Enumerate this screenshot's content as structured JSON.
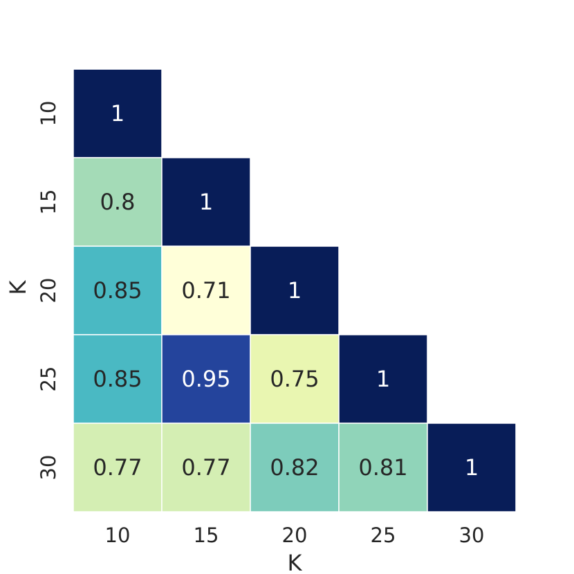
{
  "chart_data": {
    "type": "heatmap",
    "title": "",
    "xlabel": "K",
    "ylabel": "K",
    "x_categories": [
      "10",
      "15",
      "20",
      "25",
      "30"
    ],
    "y_categories": [
      "10",
      "15",
      "20",
      "25",
      "30"
    ],
    "mask": "upper-triangle",
    "colormap": "YlGnBu",
    "colorbar": false,
    "values": [
      [
        1,
        null,
        null,
        null,
        null
      ],
      [
        0.8,
        1,
        null,
        null,
        null
      ],
      [
        0.85,
        0.71,
        1,
        null,
        null
      ],
      [
        0.85,
        0.95,
        0.75,
        1,
        null
      ],
      [
        0.77,
        0.77,
        0.82,
        0.81,
        1
      ]
    ],
    "labels": [
      [
        "1",
        null,
        null,
        null,
        null
      ],
      [
        "0.8",
        "1",
        null,
        null,
        null
      ],
      [
        "0.85",
        "0.71",
        "1",
        null,
        null
      ],
      [
        "0.85",
        "0.95",
        "0.75",
        "1",
        null
      ],
      [
        "0.77",
        "0.77",
        "0.82",
        "0.81",
        "1"
      ]
    ],
    "value_range": [
      0.71,
      1
    ],
    "cell_border_color": "#ffffff",
    "label_color_dark": "#262626",
    "label_color_light": "#ffffff"
  }
}
